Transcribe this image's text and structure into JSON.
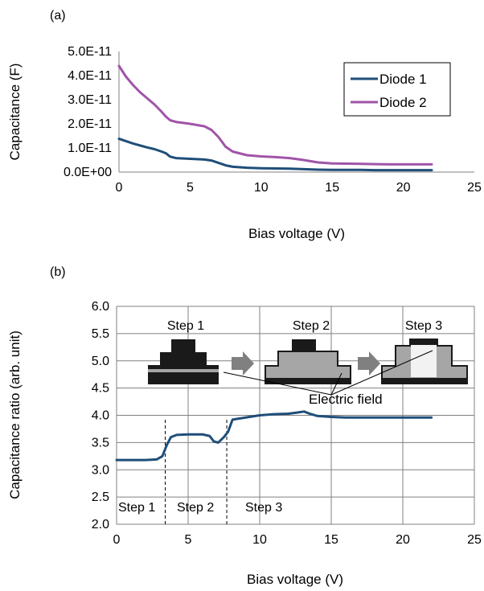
{
  "chart_data": [
    {
      "panel_label": "(a)",
      "type": "line",
      "xlabel": "Bias voltage (V)",
      "ylabel": "Capacitance (F)",
      "xlim": [
        0,
        25
      ],
      "ylim": [
        0,
        5e-11
      ],
      "x_ticks": [
        "0",
        "5",
        "10",
        "15",
        "20",
        "25"
      ],
      "y_ticks": [
        "0.0E+00",
        "1.0E-11",
        "2.0E-11",
        "3.0E-11",
        "4.0E-11",
        "5.0E-11"
      ],
      "legend_position": "top-right",
      "series": [
        {
          "name": "Diode 1",
          "color": "#1f4e79",
          "x": [
            0,
            0.5,
            1,
            1.5,
            2,
            2.5,
            3,
            3.3,
            3.6,
            4,
            5,
            6,
            6.5,
            7,
            7.5,
            8,
            9,
            10,
            11,
            12,
            13,
            14,
            15,
            16,
            17,
            18,
            19,
            20,
            21,
            22
          ],
          "y": [
            1.38e-11,
            1.28e-11,
            1.18e-11,
            1.1e-11,
            1.02e-11,
            9.5e-12,
            8.5e-12,
            7.8e-12,
            6.4e-12,
            5.8e-12,
            5.5e-12,
            5.2e-12,
            4.8e-12,
            3.8e-12,
            2.8e-12,
            2.2e-12,
            1.8e-12,
            1.6e-12,
            1.5e-12,
            1.4e-12,
            1.2e-12,
            1e-12,
            9e-13,
            9e-13,
            9e-13,
            8e-13,
            8e-13,
            8e-13,
            8e-13,
            8e-13
          ]
        },
        {
          "name": "Diode 2",
          "color": "#a054a8",
          "x": [
            0,
            0.5,
            1,
            1.5,
            2,
            2.5,
            3,
            3.3,
            3.6,
            4,
            5,
            6,
            6.5,
            7,
            7.5,
            8,
            9,
            10,
            11,
            12,
            13,
            14,
            15,
            16,
            17,
            18,
            19,
            20,
            21,
            22
          ],
          "y": [
            4.4e-11,
            3.95e-11,
            3.6e-11,
            3.3e-11,
            3.05e-11,
            2.8e-11,
            2.5e-11,
            2.3e-11,
            2.15e-11,
            2.08e-11,
            2e-11,
            1.9e-11,
            1.75e-11,
            1.45e-11,
            1.05e-11,
            8.5e-12,
            7e-12,
            6.5e-12,
            6.2e-12,
            5.8e-12,
            5e-12,
            4e-12,
            3.6e-12,
            3.5e-12,
            3.4e-12,
            3.3e-12,
            3.2e-12,
            3.2e-12,
            3.2e-12,
            3.2e-12
          ]
        }
      ]
    },
    {
      "panel_label": "(b)",
      "type": "line",
      "xlabel": "Bias voltage (V)",
      "ylabel": "Capacitance ratio (arb. unit)",
      "xlim": [
        0,
        25
      ],
      "ylim": [
        2.0,
        6.0
      ],
      "x_ticks": [
        "0",
        "5",
        "10",
        "15",
        "20",
        "25"
      ],
      "y_ticks": [
        "2.0",
        "2.5",
        "3.0",
        "3.5",
        "4.0",
        "4.5",
        "5.0",
        "5.5",
        "6.0"
      ],
      "series": [
        {
          "color": "#1f4e79",
          "x": [
            0,
            1,
            2,
            2.8,
            3.2,
            3.5,
            3.8,
            4.2,
            5,
            6,
            6.5,
            6.8,
            7.1,
            7.5,
            7.8,
            8.1,
            8.8,
            10,
            11,
            12,
            12.6,
            13.1,
            13.5,
            14,
            15,
            16,
            17,
            18,
            19,
            20,
            21,
            22
          ],
          "y": [
            3.18,
            3.18,
            3.18,
            3.19,
            3.25,
            3.45,
            3.6,
            3.64,
            3.65,
            3.65,
            3.62,
            3.52,
            3.5,
            3.6,
            3.7,
            3.92,
            3.95,
            4.0,
            4.02,
            4.03,
            4.05,
            4.07,
            4.03,
            3.99,
            3.97,
            3.96,
            3.96,
            3.96,
            3.96,
            3.96,
            3.96,
            3.96
          ]
        }
      ],
      "region_boundaries_x": [
        3.4,
        7.7
      ],
      "region_labels": [
        "Step 1",
        "Step 2",
        "Step 3"
      ],
      "inset_step_labels": [
        "Step 1",
        "Step 2",
        "Step 3"
      ],
      "annotation": "Electric field"
    }
  ]
}
